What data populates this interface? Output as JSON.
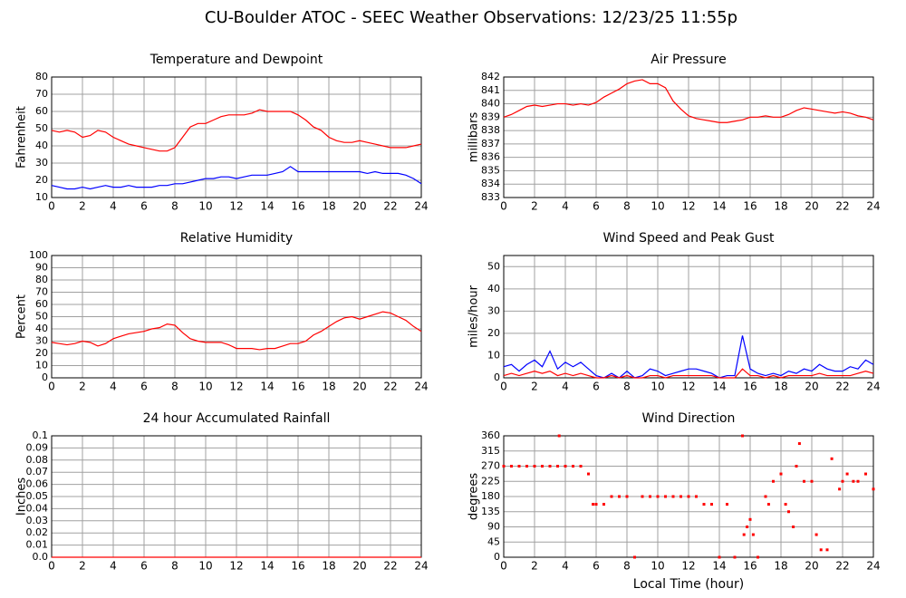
{
  "title": "CU-Boulder ATOC - SEEC Weather Observations: 12/23/25 11:55p",
  "chart_data": [
    {
      "type": "line",
      "title": "Temperature and Dewpoint",
      "ylabel": "Fahrenheit",
      "x": [
        0,
        0.5,
        1,
        1.5,
        2,
        2.5,
        3,
        3.5,
        4,
        4.5,
        5,
        5.5,
        6,
        6.5,
        7,
        7.5,
        8,
        8.5,
        9,
        9.5,
        10,
        10.5,
        11,
        11.5,
        12,
        12.5,
        13,
        13.5,
        14,
        14.5,
        15,
        15.5,
        16,
        16.5,
        17,
        17.5,
        18,
        18.5,
        19,
        19.5,
        20,
        20.5,
        21,
        21.5,
        22,
        22.5,
        23,
        23.5,
        24
      ],
      "series": [
        {
          "color": "#ff0000",
          "values": [
            49,
            48,
            49,
            48,
            45,
            46,
            49,
            48,
            45,
            43,
            41,
            40,
            39,
            38,
            37,
            37,
            39,
            45,
            51,
            53,
            53,
            55,
            57,
            58,
            58,
            58,
            59,
            61,
            60,
            60,
            60,
            60,
            58,
            55,
            51,
            49,
            45,
            43,
            42,
            42,
            43,
            42,
            41,
            40,
            39,
            39,
            39,
            40,
            41
          ]
        },
        {
          "color": "#0000ff",
          "values": [
            17,
            16,
            15,
            15,
            16,
            15,
            16,
            17,
            16,
            16,
            17,
            16,
            16,
            16,
            17,
            17,
            18,
            18,
            19,
            20,
            21,
            21,
            22,
            22,
            21,
            22,
            23,
            23,
            23,
            24,
            25,
            28,
            25,
            25,
            25,
            25,
            25,
            25,
            25,
            25,
            25,
            24,
            25,
            24,
            24,
            24,
            23,
            21,
            18
          ]
        }
      ],
      "xlim": [
        0,
        24
      ],
      "xticks": [
        0,
        2,
        4,
        6,
        8,
        10,
        12,
        14,
        16,
        18,
        20,
        22,
        24
      ],
      "ylim": [
        10,
        80
      ],
      "yticks": [
        10,
        20,
        30,
        40,
        50,
        60,
        70,
        80
      ],
      "grid": true
    },
    {
      "type": "line",
      "title": "Air Pressure",
      "ylabel": "millibars",
      "x": [
        0,
        0.5,
        1,
        1.5,
        2,
        2.5,
        3,
        3.5,
        4,
        4.5,
        5,
        5.5,
        6,
        6.5,
        7,
        7.5,
        8,
        8.5,
        9,
        9.5,
        10,
        10.5,
        11,
        11.5,
        12,
        12.5,
        13,
        13.5,
        14,
        14.5,
        15,
        15.5,
        16,
        16.5,
        17,
        17.5,
        18,
        18.5,
        19,
        19.5,
        20,
        20.5,
        21,
        21.5,
        22,
        22.5,
        23,
        23.5,
        24
      ],
      "series": [
        {
          "color": "#ff0000",
          "values": [
            839.0,
            839.2,
            839.5,
            839.8,
            839.9,
            839.8,
            839.9,
            840.0,
            840.0,
            839.9,
            840.0,
            839.9,
            840.1,
            840.5,
            840.8,
            841.1,
            841.5,
            841.7,
            841.8,
            841.5,
            841.5,
            841.2,
            840.2,
            839.6,
            839.1,
            838.9,
            838.8,
            838.7,
            838.6,
            838.6,
            838.7,
            838.8,
            839.0,
            839.0,
            839.1,
            839.0,
            839.0,
            839.2,
            839.5,
            839.7,
            839.6,
            839.5,
            839.4,
            839.3,
            839.4,
            839.3,
            839.1,
            839.0,
            838.8
          ]
        }
      ],
      "xlim": [
        0,
        24
      ],
      "xticks": [
        0,
        2,
        4,
        6,
        8,
        10,
        12,
        14,
        16,
        18,
        20,
        22,
        24
      ],
      "ylim": [
        833,
        842
      ],
      "yticks": [
        833,
        834,
        835,
        836,
        837,
        838,
        839,
        840,
        841,
        842
      ],
      "grid": true
    },
    {
      "type": "line",
      "title": "Relative Humidity",
      "ylabel": "Percent",
      "x": [
        0,
        0.5,
        1,
        1.5,
        2,
        2.5,
        3,
        3.5,
        4,
        4.5,
        5,
        5.5,
        6,
        6.5,
        7,
        7.5,
        8,
        8.5,
        9,
        9.5,
        10,
        10.5,
        11,
        11.5,
        12,
        12.5,
        13,
        13.5,
        14,
        14.5,
        15,
        15.5,
        16,
        16.5,
        17,
        17.5,
        18,
        18.5,
        19,
        19.5,
        20,
        20.5,
        21,
        21.5,
        22,
        22.5,
        23,
        23.5,
        24
      ],
      "series": [
        {
          "color": "#ff0000",
          "values": [
            29,
            28,
            27,
            28,
            30,
            29,
            26,
            28,
            32,
            34,
            36,
            37,
            38,
            40,
            41,
            44,
            43,
            37,
            32,
            30,
            29,
            29,
            29,
            27,
            24,
            24,
            24,
            23,
            24,
            24,
            26,
            28,
            28,
            30,
            35,
            38,
            42,
            46,
            49,
            50,
            48,
            50,
            52,
            54,
            53,
            50,
            47,
            42,
            38
          ]
        }
      ],
      "xlim": [
        0,
        24
      ],
      "xticks": [
        0,
        2,
        4,
        6,
        8,
        10,
        12,
        14,
        16,
        18,
        20,
        22,
        24
      ],
      "ylim": [
        0,
        100
      ],
      "yticks": [
        0,
        10,
        20,
        30,
        40,
        50,
        60,
        70,
        80,
        90,
        100
      ],
      "grid": true
    },
    {
      "type": "line",
      "title": "Wind Speed and Peak Gust",
      "ylabel": "miles/hour",
      "x": [
        0,
        0.5,
        1,
        1.5,
        2,
        2.5,
        3,
        3.5,
        4,
        4.5,
        5,
        5.5,
        6,
        6.5,
        7,
        7.5,
        8,
        8.5,
        9,
        9.5,
        10,
        10.5,
        11,
        11.5,
        12,
        12.5,
        13,
        13.5,
        14,
        14.5,
        15,
        15.5,
        16,
        16.5,
        17,
        17.5,
        18,
        18.5,
        19,
        19.5,
        20,
        20.5,
        21,
        21.5,
        22,
        22.5,
        23,
        23.5,
        24
      ],
      "series": [
        {
          "color": "#0000ff",
          "values": [
            5,
            6,
            3,
            6,
            8,
            5,
            12,
            4,
            7,
            5,
            7,
            4,
            1,
            0,
            2,
            0,
            3,
            0,
            1,
            4,
            3,
            1,
            2,
            3,
            4,
            4,
            3,
            2,
            0,
            1,
            1,
            19,
            4,
            2,
            1,
            2,
            1,
            3,
            2,
            4,
            3,
            6,
            4,
            3,
            3,
            5,
            4,
            8,
            6
          ]
        },
        {
          "color": "#ff0000",
          "values": [
            1,
            2,
            1,
            2,
            3,
            2,
            3,
            1,
            2,
            1,
            2,
            1,
            0,
            0,
            1,
            0,
            1,
            0,
            0,
            1,
            1,
            0,
            1,
            1,
            1,
            1,
            1,
            1,
            0,
            0,
            0,
            4,
            1,
            1,
            0,
            1,
            0,
            1,
            1,
            1,
            1,
            2,
            1,
            1,
            1,
            1,
            2,
            3,
            2
          ]
        }
      ],
      "xlim": [
        0,
        24
      ],
      "xticks": [
        0,
        2,
        4,
        6,
        8,
        10,
        12,
        14,
        16,
        18,
        20,
        22,
        24
      ],
      "ylim": [
        0,
        55
      ],
      "yticks": [
        0,
        10,
        20,
        30,
        40,
        50
      ],
      "grid": true
    },
    {
      "type": "line",
      "title": "24 hour Accumulated Rainfall",
      "ylabel": "Inches",
      "x": [
        0,
        24
      ],
      "series": [
        {
          "color": "#ff0000",
          "values": [
            0,
            0
          ]
        }
      ],
      "xlim": [
        0,
        24
      ],
      "xticks": [
        0,
        2,
        4,
        6,
        8,
        10,
        12,
        14,
        16,
        18,
        20,
        22,
        24
      ],
      "ylim": [
        0,
        0.1
      ],
      "yticks": [
        {
          "value": 0,
          "label": "0.0"
        },
        0.01,
        0.02,
        0.03,
        0.04,
        0.05,
        0.06,
        0.07,
        0.08,
        0.09,
        0.1
      ],
      "grid": true
    },
    {
      "type": "scatter",
      "title": "Wind Direction",
      "ylabel": "degrees",
      "xlabel": "Local Time (hour)",
      "x": [
        0,
        0.5,
        1,
        1.5,
        2,
        2.5,
        3,
        3.5,
        3.6,
        4,
        4.5,
        5,
        5.5,
        5.8,
        6,
        6.5,
        7,
        7.5,
        8,
        8.5,
        9,
        9.5,
        10,
        10.5,
        11,
        11.5,
        12,
        12.5,
        13,
        13.5,
        14,
        14.5,
        15,
        15.5,
        15.6,
        15.8,
        16,
        16.2,
        16.5,
        17,
        17.2,
        17.5,
        18,
        18.3,
        18.5,
        18.8,
        19,
        19.2,
        19.5,
        20,
        20.3,
        20.6,
        21,
        21.3,
        21.8,
        22,
        22.3,
        22.7,
        23,
        23.5,
        24
      ],
      "series": [
        {
          "color": "#ff0000",
          "values": [
            270,
            270,
            270,
            270,
            270,
            270,
            270,
            270,
            360,
            270,
            270,
            270,
            247,
            157,
            157,
            157,
            180,
            180,
            180,
            0,
            180,
            180,
            180,
            180,
            180,
            180,
            180,
            180,
            157,
            157,
            0,
            157,
            0,
            360,
            67,
            90,
            112,
            67,
            0,
            180,
            157,
            225,
            247,
            157,
            135,
            90,
            270,
            337,
            225,
            225,
            67,
            22,
            22,
            292,
            202,
            225,
            247,
            225,
            225,
            247,
            202
          ]
        }
      ],
      "xlim": [
        0,
        24
      ],
      "xticks": [
        0,
        2,
        4,
        6,
        8,
        10,
        12,
        14,
        16,
        18,
        20,
        22,
        24
      ],
      "ylim": [
        0,
        360
      ],
      "yticks": [
        0,
        45,
        90,
        135,
        180,
        225,
        270,
        315,
        360
      ],
      "grid": true
    }
  ]
}
